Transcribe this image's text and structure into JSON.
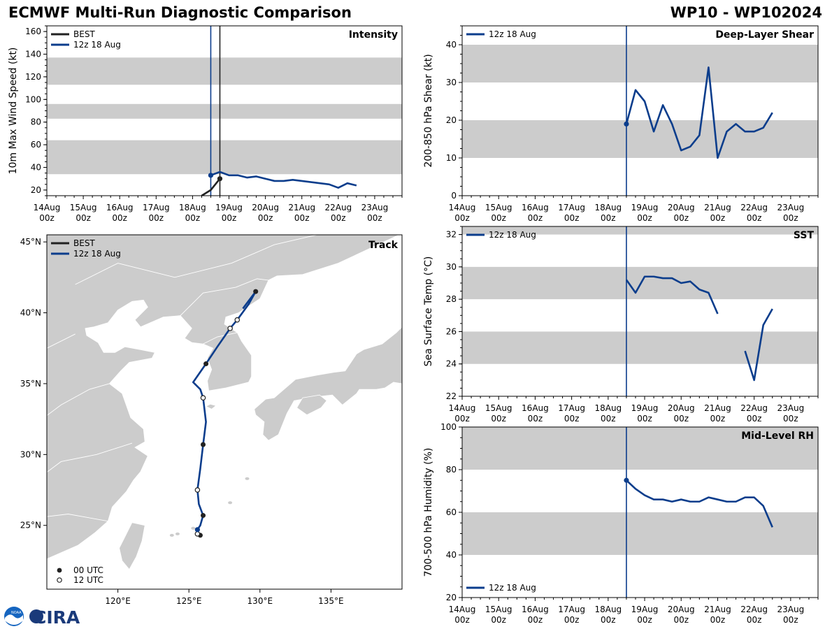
{
  "header": {
    "title_left": "ECMWF Multi-Run Diagnostic Comparison",
    "title_right": "WP10 - WP102024"
  },
  "logos": {
    "noaa": "NOAA",
    "cira": "CIRA"
  },
  "colors": {
    "best": "#222222",
    "run": "#0b3d8c",
    "band": "#cccccc",
    "land": "#cccccc",
    "land_border": "#ffffff"
  },
  "time_axis": {
    "ticks": [
      "14Aug",
      "15Aug",
      "16Aug",
      "17Aug",
      "18Aug",
      "19Aug",
      "20Aug",
      "21Aug",
      "22Aug",
      "23Aug"
    ],
    "tick_sub": "00z",
    "range_hours": [
      0,
      234
    ],
    "minor_step_hours": 6
  },
  "chart_data": [
    {
      "id": "intensity",
      "type": "line",
      "title": "Intensity",
      "ylabel": "10m Max Wind Speed (kt)",
      "ylim": [
        15,
        165
      ],
      "yticks": [
        20,
        40,
        60,
        80,
        100,
        120,
        140,
        160
      ],
      "x_unit": "hours since 14Aug 00z",
      "bands": [
        [
          34,
          64
        ],
        [
          83,
          96
        ],
        [
          113,
          137
        ]
      ],
      "vlines": [
        {
          "series": "12z 18 Aug",
          "x": 108
        },
        {
          "series": "BEST",
          "x": 114
        }
      ],
      "legend": [
        "BEST",
        "12z 18 Aug"
      ],
      "legend_position": "top-left",
      "series": [
        {
          "name": "BEST",
          "color": "#222222",
          "x": [
            102,
            108,
            114
          ],
          "y": [
            15,
            20,
            30
          ],
          "marker_x": 114
        },
        {
          "name": "12z 18 Aug",
          "color": "#0b3d8c",
          "x": [
            108,
            114,
            120,
            126,
            132,
            138,
            144,
            150,
            156,
            162,
            168,
            174,
            180,
            186,
            192,
            198,
            204
          ],
          "y": [
            33,
            36,
            33,
            33,
            31,
            32,
            30,
            28,
            28,
            29,
            28,
            27,
            26,
            25,
            22,
            26,
            24
          ],
          "marker_x": 108
        }
      ]
    },
    {
      "id": "shear",
      "type": "line",
      "title": "Deep-Layer Shear",
      "ylabel": "200-850 hPa Shear (kt)",
      "ylim": [
        0,
        45
      ],
      "yticks": [
        0,
        10,
        20,
        30,
        40
      ],
      "x_unit": "hours since 14Aug 00z",
      "bands": [
        [
          10,
          20
        ],
        [
          30,
          40
        ]
      ],
      "vlines": [
        {
          "series": "12z 18 Aug",
          "x": 108
        }
      ],
      "legend": [
        "12z 18 Aug"
      ],
      "legend_position": "top-left",
      "series": [
        {
          "name": "12z 18 Aug",
          "color": "#0b3d8c",
          "x": [
            108,
            114,
            120,
            126,
            132,
            138,
            144,
            150,
            156,
            162,
            168,
            174,
            180,
            186,
            192,
            198,
            204
          ],
          "y": [
            19,
            28,
            25,
            17,
            24,
            19,
            12,
            13,
            16,
            34,
            10,
            17,
            19,
            17,
            17,
            18,
            22
          ],
          "marker_x": 108
        }
      ]
    },
    {
      "id": "sst",
      "type": "line",
      "title": "SST",
      "ylabel": "Sea Surface Temp (°C)",
      "ylim": [
        22,
        32.5
      ],
      "yticks": [
        22,
        24,
        26,
        28,
        30,
        32
      ],
      "x_unit": "hours since 14Aug 00z",
      "bands": [
        [
          24,
          26
        ],
        [
          28,
          30
        ],
        [
          32,
          32.5
        ]
      ],
      "vlines": [
        {
          "series": "12z 18 Aug",
          "x": 108
        }
      ],
      "legend": [
        "12z 18 Aug"
      ],
      "legend_position": "top-left",
      "series": [
        {
          "name": "12z 18 Aug",
          "color": "#0b3d8c",
          "x": [
            108,
            114,
            120,
            126,
            132,
            138,
            144,
            150,
            156,
            162,
            168,
            null,
            186,
            192,
            198,
            204
          ],
          "y": [
            29.2,
            28.4,
            29.4,
            29.4,
            29.3,
            29.3,
            29.0,
            29.1,
            28.6,
            28.4,
            27.1,
            null,
            24.8,
            23.0,
            26.4,
            27.4
          ]
        }
      ]
    },
    {
      "id": "rh",
      "type": "line",
      "title": "Mid-Level RH",
      "ylabel": "700-500 hPa Humidity (%)",
      "ylim": [
        20,
        100
      ],
      "yticks": [
        20,
        40,
        60,
        80,
        100
      ],
      "x_unit": "hours since 14Aug 00z",
      "bands": [
        [
          40,
          60
        ],
        [
          80,
          100
        ]
      ],
      "vlines": [
        {
          "series": "12z 18 Aug",
          "x": 108
        }
      ],
      "legend": [
        "12z 18 Aug"
      ],
      "legend_position": "bottom-left",
      "series": [
        {
          "name": "12z 18 Aug",
          "color": "#0b3d8c",
          "x": [
            108,
            114,
            120,
            126,
            132,
            138,
            144,
            150,
            156,
            162,
            168,
            174,
            180,
            186,
            192,
            198,
            204
          ],
          "y": [
            75,
            71,
            68,
            66,
            66,
            65,
            66,
            65,
            65,
            67,
            66,
            65,
            65,
            67,
            67,
            63,
            53
          ],
          "marker_x": 108
        }
      ]
    },
    {
      "id": "track",
      "type": "scatter",
      "title": "Track",
      "lon_range": [
        115,
        140
      ],
      "lat_range": [
        20.5,
        45.5
      ],
      "xticks": [
        "120°E",
        "125°E",
        "130°E",
        "135°E"
      ],
      "xtick_values": [
        120,
        125,
        130,
        135
      ],
      "yticks": [
        "25°N",
        "30°N",
        "35°N",
        "40°N",
        "45°N"
      ],
      "ytick_values": [
        25,
        30,
        35,
        40,
        45
      ],
      "legend": [
        "BEST",
        "12z 18 Aug"
      ],
      "legend_position": "top-left",
      "marker_legend": [
        "00 UTC",
        "12 UTC"
      ],
      "marker_legend_position": "bottom-left",
      "series": [
        {
          "name": "BEST",
          "color": "#222222",
          "points": [
            [
              125.7,
              24.4
            ],
            [
              125.8,
              24.3
            ]
          ]
        },
        {
          "name": "12z 18 Aug",
          "color": "#0b3d8c",
          "points": [
            [
              125.6,
              24.7
            ],
            [
              125.8,
              25.0
            ],
            [
              126.0,
              25.7
            ],
            [
              125.7,
              26.5
            ],
            [
              125.6,
              27.5
            ],
            [
              125.8,
              29.0
            ],
            [
              126.0,
              30.7
            ],
            [
              126.2,
              32.3
            ],
            [
              126.0,
              34.0
            ],
            [
              125.8,
              34.6
            ],
            [
              125.3,
              35.1
            ],
            [
              126.2,
              36.4
            ],
            [
              127.0,
              37.6
            ],
            [
              127.9,
              38.9
            ],
            [
              128.4,
              39.5
            ],
            [
              129.2,
              40.6
            ],
            [
              129.7,
              41.5
            ],
            [
              128.8,
              40.3
            ]
          ]
        }
      ],
      "markers_00utc": [
        [
          125.8,
          24.3
        ],
        [
          126.0,
          25.7
        ],
        [
          126.0,
          30.7
        ],
        [
          126.2,
          36.4
        ],
        [
          129.7,
          41.5
        ]
      ],
      "markers_12utc": [
        [
          125.6,
          24.4
        ],
        [
          125.6,
          27.5
        ],
        [
          126.0,
          34.0
        ],
        [
          127.9,
          38.9
        ],
        [
          128.4,
          39.5
        ]
      ],
      "start_marker": [
        125.6,
        24.7
      ]
    }
  ]
}
